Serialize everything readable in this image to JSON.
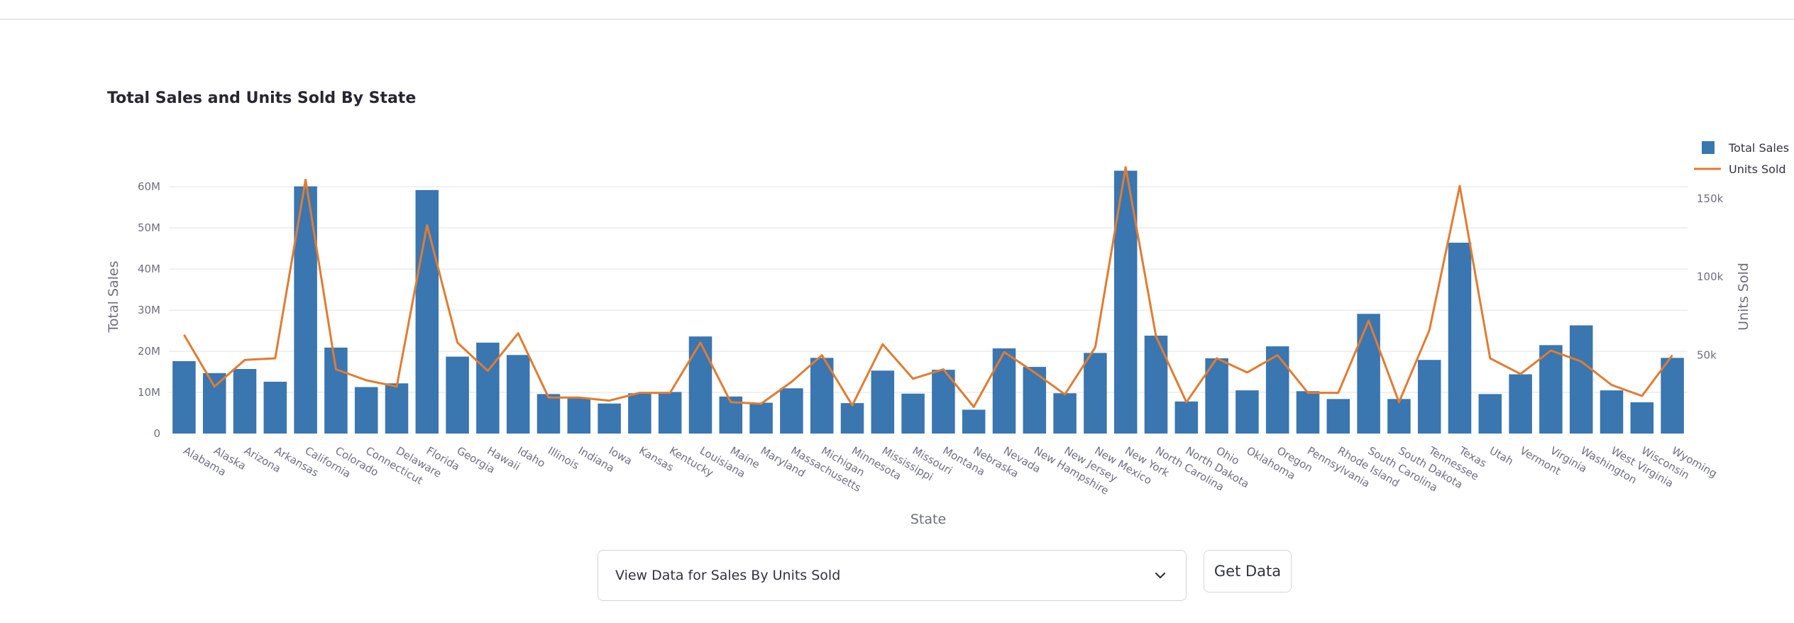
{
  "chart_data": {
    "type": "bar",
    "title": "Total Sales and Units Sold By State",
    "xlabel": "State",
    "ylabel": "Total Sales",
    "y2label": "Units Sold",
    "ylim": [
      0,
      64000000
    ],
    "y2lim": [
      0,
      168000
    ],
    "yticks": [
      "0",
      "10M",
      "20M",
      "30M",
      "40M",
      "50M",
      "60M"
    ],
    "y2ticks": [
      "50k",
      "100k",
      "150k"
    ],
    "legend_position": "top-right",
    "grid": true,
    "categories": [
      "Alabama",
      "Alaska",
      "Arizona",
      "Arkansas",
      "California",
      "Colorado",
      "Connecticut",
      "Delaware",
      "Florida",
      "Georgia",
      "Hawaii",
      "Idaho",
      "Illinois",
      "Indiana",
      "Iowa",
      "Kansas",
      "Kentucky",
      "Louisiana",
      "Maine",
      "Maryland",
      "Massachusetts",
      "Michigan",
      "Minnesota",
      "Mississippi",
      "Missouri",
      "Montana",
      "Nebraska",
      "Nevada",
      "New Hampshire",
      "New Jersey",
      "New Mexico",
      "New York",
      "North Carolina",
      "North Dakota",
      "Ohio",
      "Oklahoma",
      "Oregon",
      "Pennsylvania",
      "Rhode Island",
      "South Carolina",
      "South Dakota",
      "Tennessee",
      "Texas",
      "Utah",
      "Vermont",
      "Virginia",
      "Washington",
      "West Virginia",
      "Wisconsin",
      "Wyoming"
    ],
    "series": [
      {
        "name": "Total Sales",
        "kind": "bar",
        "color": "#3a76b0",
        "values": [
          17600000,
          14700000,
          15700000,
          12600000,
          60100000,
          20900000,
          11300000,
          12200000,
          59200000,
          18700000,
          22100000,
          19100000,
          9600000,
          8700000,
          7300000,
          9800000,
          10100000,
          23600000,
          9000000,
          7500000,
          11000000,
          18400000,
          7400000,
          15300000,
          9700000,
          15500000,
          5800000,
          20700000,
          16200000,
          9800000,
          19600000,
          63900000,
          23800000,
          7800000,
          18300000,
          10500000,
          21200000,
          10300000,
          8400000,
          29100000,
          8400000,
          17900000,
          46400000,
          9600000,
          14400000,
          21500000,
          26300000,
          10500000,
          7600000,
          18400000
        ]
      },
      {
        "name": "Units Sold",
        "kind": "line",
        "color": "#e07c31",
        "values": [
          63000,
          30000,
          47000,
          48000,
          162000,
          41000,
          34000,
          30000,
          133000,
          58000,
          40000,
          64000,
          23000,
          23000,
          21000,
          26000,
          26000,
          58000,
          20000,
          19000,
          33000,
          50000,
          18000,
          57000,
          35000,
          41000,
          17000,
          52000,
          39000,
          25000,
          55000,
          170000,
          62000,
          20000,
          48000,
          39000,
          50000,
          26000,
          26000,
          72000,
          20000,
          66000,
          158000,
          48000,
          38000,
          53000,
          46000,
          31000,
          24000,
          50000
        ]
      }
    ]
  },
  "controls": {
    "select_value": "View Data for Sales By Units Sold",
    "button_label": "Get Data"
  }
}
